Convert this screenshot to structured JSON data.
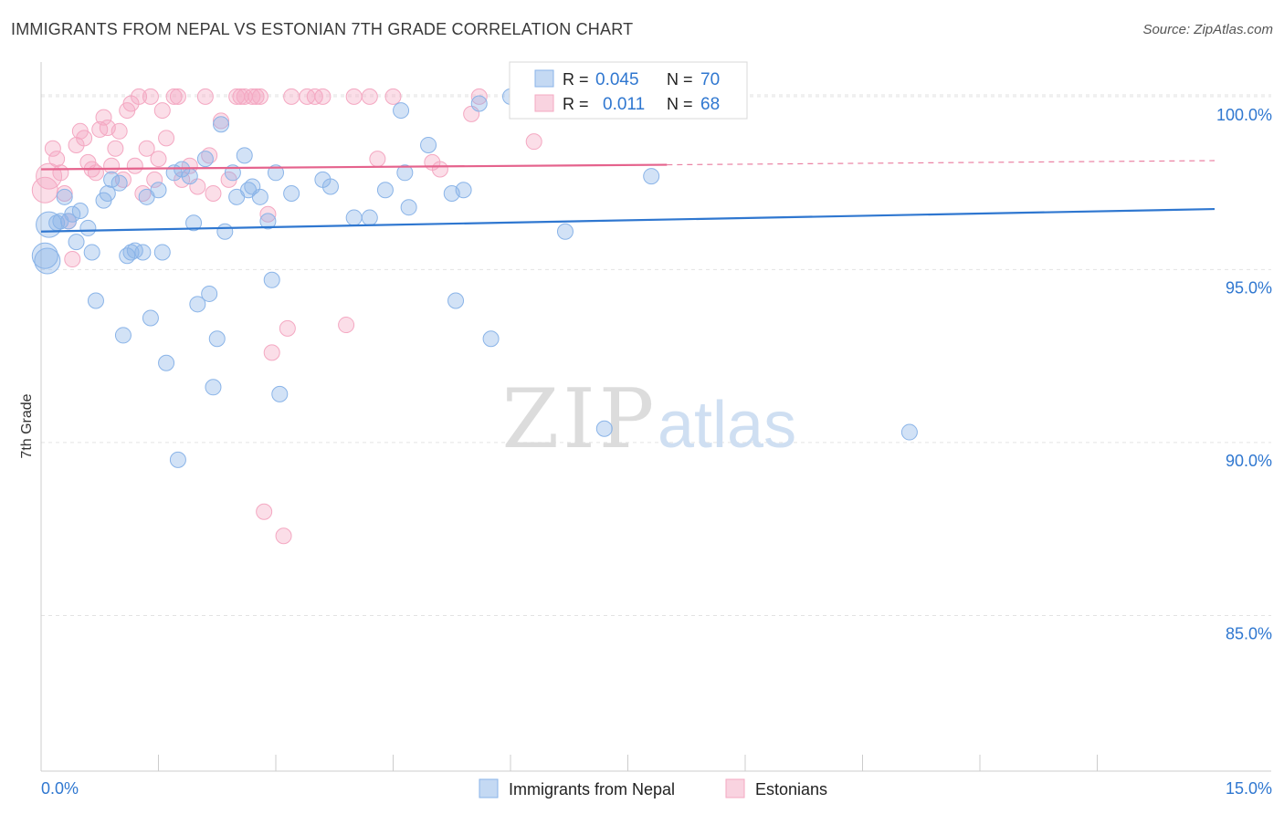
{
  "title": "IMMIGRANTS FROM NEPAL VS ESTONIAN 7TH GRADE CORRELATION CHART",
  "source": "Source: ZipAtlas.com",
  "watermark": {
    "zip": "ZIP",
    "atlas": "atlas"
  },
  "chart_data": {
    "type": "scatter",
    "title": "IMMIGRANTS FROM NEPAL VS ESTONIAN 7TH GRADE CORRELATION CHART",
    "ylabel": "7th Grade",
    "xlabel": "",
    "xlim": [
      0,
      15
    ],
    "ylim": [
      80.5,
      101.0
    ],
    "x_tick_labels": [
      "0.0%",
      "15.0%"
    ],
    "y_ticks": [
      {
        "value": 100,
        "label": "100.0%"
      },
      {
        "value": 95,
        "label": "95.0%"
      },
      {
        "value": 90,
        "label": "90.0%"
      },
      {
        "value": 85,
        "label": "85.0%"
      }
    ],
    "legend": {
      "position": "top-center",
      "rows": [
        {
          "r_label": "R =",
          "r_value": "0.045",
          "n_label": "N =",
          "n_value": "70"
        },
        {
          "r_label": "R =",
          "r_value": "0.011",
          "n_label": "N =",
          "n_value": "68"
        }
      ]
    },
    "series": [
      {
        "name": "Immigrants from Nepal",
        "color": "#8ab4e8",
        "line_color": "#2f77d0",
        "trend": {
          "x0": 0,
          "y0": 96.1,
          "x1": 15,
          "y1": 96.75
        },
        "points": [
          [
            0.05,
            95.4
          ],
          [
            0.08,
            95.25
          ],
          [
            0.1,
            96.3
          ],
          [
            0.2,
            96.35
          ],
          [
            0.25,
            96.4
          ],
          [
            0.3,
            97.1
          ],
          [
            0.35,
            96.4
          ],
          [
            0.4,
            96.6
          ],
          [
            0.45,
            95.8
          ],
          [
            0.5,
            96.7
          ],
          [
            0.6,
            96.2
          ],
          [
            0.65,
            95.5
          ],
          [
            0.7,
            94.1
          ],
          [
            0.8,
            97.0
          ],
          [
            0.85,
            97.2
          ],
          [
            0.9,
            97.6
          ],
          [
            1.0,
            97.5
          ],
          [
            1.05,
            93.1
          ],
          [
            1.1,
            95.4
          ],
          [
            1.15,
            95.5
          ],
          [
            1.2,
            95.55
          ],
          [
            1.3,
            95.5
          ],
          [
            1.35,
            97.1
          ],
          [
            1.4,
            93.6
          ],
          [
            1.5,
            97.3
          ],
          [
            1.55,
            95.5
          ],
          [
            1.6,
            92.3
          ],
          [
            1.7,
            97.8
          ],
          [
            1.75,
            89.5
          ],
          [
            1.8,
            97.9
          ],
          [
            1.9,
            97.7
          ],
          [
            1.95,
            96.35
          ],
          [
            2.0,
            94.0
          ],
          [
            2.1,
            98.2
          ],
          [
            2.15,
            94.3
          ],
          [
            2.2,
            91.6
          ],
          [
            2.25,
            93.0
          ],
          [
            2.3,
            99.2
          ],
          [
            2.35,
            96.1
          ],
          [
            2.45,
            97.8
          ],
          [
            2.5,
            97.1
          ],
          [
            2.6,
            98.3
          ],
          [
            2.65,
            97.3
          ],
          [
            2.7,
            97.4
          ],
          [
            2.8,
            97.1
          ],
          [
            2.9,
            96.4
          ],
          [
            2.95,
            94.7
          ],
          [
            3.0,
            97.8
          ],
          [
            3.05,
            91.4
          ],
          [
            3.2,
            97.2
          ],
          [
            3.6,
            97.6
          ],
          [
            3.7,
            97.4
          ],
          [
            4.0,
            96.5
          ],
          [
            4.2,
            96.5
          ],
          [
            4.4,
            97.3
          ],
          [
            4.6,
            99.6
          ],
          [
            4.65,
            97.8
          ],
          [
            4.7,
            96.8
          ],
          [
            4.95,
            98.6
          ],
          [
            5.25,
            97.2
          ],
          [
            5.3,
            94.1
          ],
          [
            5.4,
            97.3
          ],
          [
            5.75,
            93.0
          ],
          [
            6.0,
            100.0
          ],
          [
            6.15,
            99.7
          ],
          [
            6.7,
            96.1
          ],
          [
            7.2,
            90.4
          ],
          [
            7.8,
            97.7
          ],
          [
            11.1,
            90.3
          ],
          [
            5.6,
            99.8
          ]
        ]
      },
      {
        "name": "Estonians",
        "color": "#f4a8c2",
        "line_color": "#e5638d",
        "trend": {
          "x0": 0,
          "y0": 97.9,
          "x1": 8.0,
          "y1": 98.03,
          "x2": 15,
          "y2": 98.15
        },
        "points": [
          [
            0.05,
            97.3
          ],
          [
            0.1,
            97.7
          ],
          [
            0.15,
            98.5
          ],
          [
            0.2,
            98.2
          ],
          [
            0.25,
            97.8
          ],
          [
            0.3,
            97.2
          ],
          [
            0.35,
            96.4
          ],
          [
            0.4,
            95.3
          ],
          [
            0.45,
            98.6
          ],
          [
            0.5,
            99.0
          ],
          [
            0.55,
            98.8
          ],
          [
            0.6,
            98.1
          ],
          [
            0.65,
            97.9
          ],
          [
            0.7,
            97.8
          ],
          [
            0.75,
            99.05
          ],
          [
            0.8,
            99.4
          ],
          [
            0.85,
            99.1
          ],
          [
            0.9,
            98.0
          ],
          [
            0.95,
            98.5
          ],
          [
            1.0,
            99.0
          ],
          [
            1.05,
            97.6
          ],
          [
            1.1,
            99.6
          ],
          [
            1.15,
            99.8
          ],
          [
            1.2,
            98.0
          ],
          [
            1.25,
            100.0
          ],
          [
            1.3,
            97.2
          ],
          [
            1.35,
            98.5
          ],
          [
            1.4,
            100.0
          ],
          [
            1.45,
            97.6
          ],
          [
            1.5,
            98.2
          ],
          [
            1.55,
            99.6
          ],
          [
            1.6,
            98.8
          ],
          [
            1.7,
            100.0
          ],
          [
            1.75,
            100.0
          ],
          [
            1.8,
            97.6
          ],
          [
            1.9,
            98.0
          ],
          [
            2.0,
            97.4
          ],
          [
            2.1,
            100.0
          ],
          [
            2.15,
            98.3
          ],
          [
            2.2,
            97.2
          ],
          [
            2.3,
            99.3
          ],
          [
            2.4,
            97.6
          ],
          [
            2.5,
            100.0
          ],
          [
            2.55,
            100.0
          ],
          [
            2.6,
            100.0
          ],
          [
            2.7,
            100.0
          ],
          [
            2.75,
            100.0
          ],
          [
            2.8,
            100.0
          ],
          [
            2.85,
            88.0
          ],
          [
            2.9,
            96.6
          ],
          [
            2.95,
            92.6
          ],
          [
            3.1,
            87.3
          ],
          [
            3.15,
            93.3
          ],
          [
            3.2,
            100.0
          ],
          [
            3.4,
            100.0
          ],
          [
            3.5,
            100.0
          ],
          [
            3.6,
            100.0
          ],
          [
            3.9,
            93.4
          ],
          [
            4.0,
            100.0
          ],
          [
            4.2,
            100.0
          ],
          [
            4.3,
            98.2
          ],
          [
            4.5,
            100.0
          ],
          [
            5.0,
            98.1
          ],
          [
            5.1,
            97.9
          ],
          [
            5.5,
            99.5
          ],
          [
            5.6,
            100.0
          ],
          [
            6.3,
            98.7
          ],
          [
            7.9,
            100.0
          ]
        ]
      }
    ]
  }
}
